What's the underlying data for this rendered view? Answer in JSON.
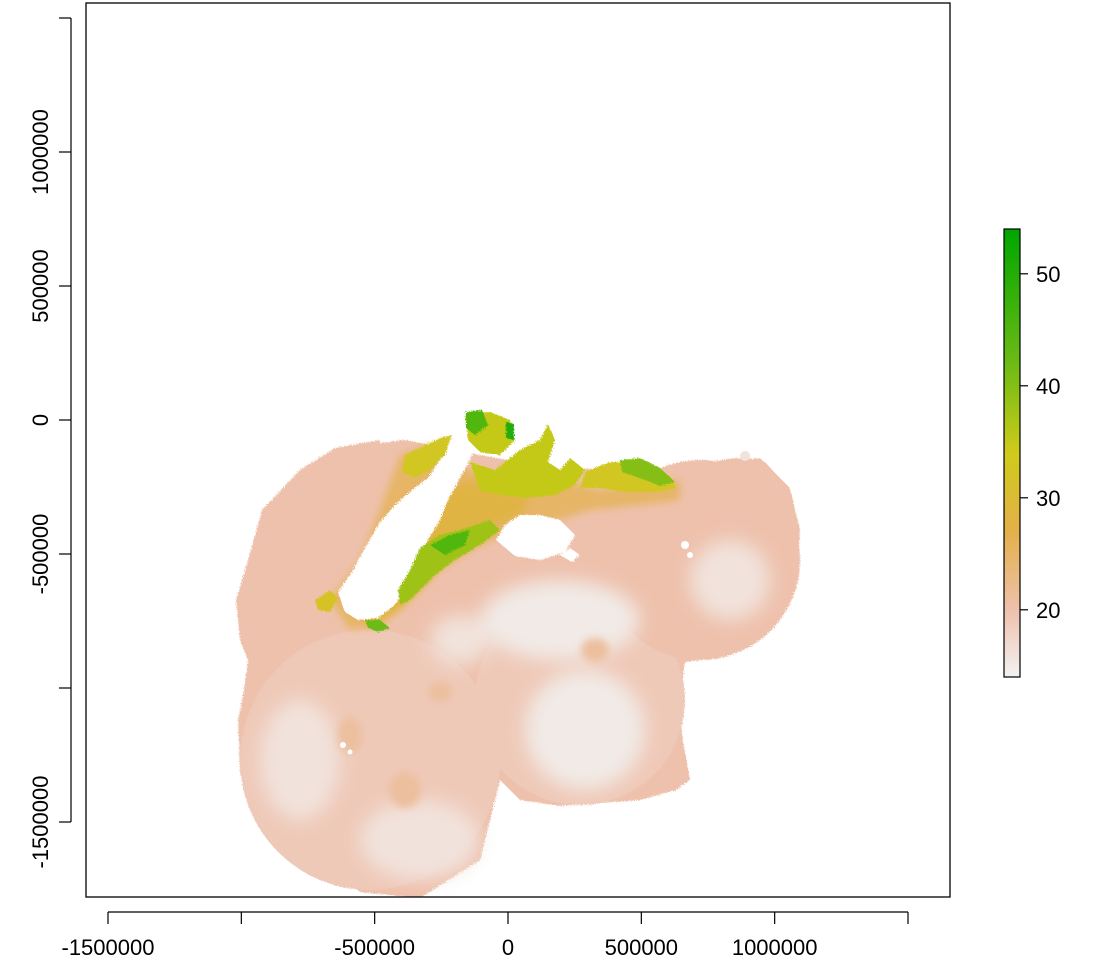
{
  "chart_data": {
    "type": "heatmap",
    "title": "",
    "xlabel": "",
    "ylabel": "",
    "xlim": [
      -1500000,
      1500000
    ],
    "ylim": [
      -1800000,
      1500000
    ],
    "x_ticks": [
      {
        "value": -1500000,
        "label": "-1500000"
      },
      {
        "value": -1000000,
        "label": ""
      },
      {
        "value": -500000,
        "label": "-500000"
      },
      {
        "value": 0,
        "label": "0"
      },
      {
        "value": 500000,
        "label": "500000"
      },
      {
        "value": 1000000,
        "label": "1000000"
      },
      {
        "value": 1500000,
        "label": ""
      }
    ],
    "y_ticks": [
      {
        "value": -1500000,
        "label": "-1500000"
      },
      {
        "value": -1000000,
        "label": ""
      },
      {
        "value": -500000,
        "label": "-500000"
      },
      {
        "value": 0,
        "label": "0"
      },
      {
        "value": 500000,
        "label": "500000"
      },
      {
        "value": 1000000,
        "label": "1000000"
      },
      {
        "value": 1500000,
        "label": ""
      }
    ],
    "legend": {
      "placement": "right",
      "range": [
        14,
        54
      ],
      "ticks": [
        {
          "value": 20,
          "label": "20"
        },
        {
          "value": 30,
          "label": "30"
        },
        {
          "value": 40,
          "label": "40"
        },
        {
          "value": 50,
          "label": "50"
        }
      ],
      "color_stops": [
        {
          "value": 14,
          "color": "#f2f2f2"
        },
        {
          "value": 20,
          "color": "#eec1ac"
        },
        {
          "value": 27,
          "color": "#e3b04a"
        },
        {
          "value": 34,
          "color": "#cfcb1a"
        },
        {
          "value": 42,
          "color": "#6cbb14"
        },
        {
          "value": 54,
          "color": "#00a600"
        }
      ]
    },
    "land_color": "#ffffff",
    "grid": false
  }
}
